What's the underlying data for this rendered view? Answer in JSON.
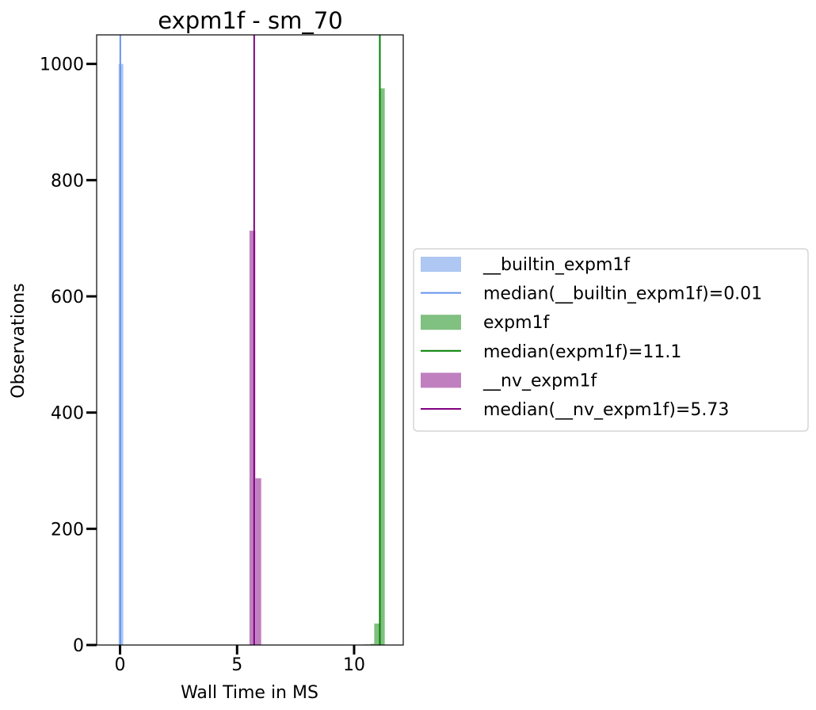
{
  "chart_data": {
    "type": "histogram",
    "title": "expm1f - sm_70",
    "xlabel": "Wall Time in MS",
    "ylabel": "Observations",
    "xlim": [
      -1.0,
      12.1
    ],
    "ylim": [
      0,
      1050
    ],
    "xticks": [
      0,
      5,
      10
    ],
    "yticks": [
      0,
      200,
      400,
      600,
      800,
      1000
    ],
    "grid": false,
    "legend_position": "right, outside plot",
    "series": [
      {
        "name": "__builtin_expm1f",
        "color": "#aec7f3",
        "median_label": "median(__builtin_expm1f)=0.01",
        "median": 0.01,
        "median_color": "#6495ed",
        "bins": [
          {
            "x0": -0.06,
            "x1": 0.14,
            "count": 1000
          }
        ]
      },
      {
        "name": "expm1f",
        "color": "#80c080",
        "median_label": "median(expm1f)=11.1",
        "median": 11.1,
        "median_color": "#008000",
        "bins": [
          {
            "x0": 10.41,
            "x1": 10.56,
            "count": 1
          },
          {
            "x0": 10.56,
            "x1": 10.71,
            "count": 1
          },
          {
            "x0": 10.71,
            "x1": 10.86,
            "count": 2
          },
          {
            "x0": 10.86,
            "x1": 11.08,
            "count": 37
          },
          {
            "x0": 11.08,
            "x1": 11.31,
            "count": 958
          }
        ]
      },
      {
        "name": "__nv_expm1f",
        "color": "#c080c0",
        "median_label": "median(__nv_expm1f)=5.73",
        "median": 5.73,
        "median_color": "#800080",
        "bins": [
          {
            "x0": 5.53,
            "x1": 5.78,
            "count": 713
          },
          {
            "x0": 5.78,
            "x1": 6.03,
            "count": 287
          }
        ]
      }
    ]
  }
}
